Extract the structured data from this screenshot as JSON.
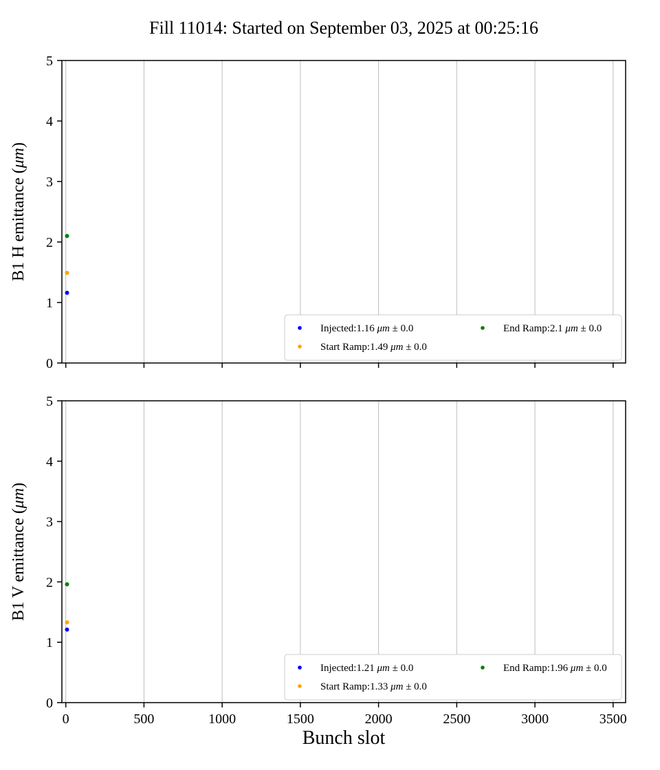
{
  "title": "Fill 11014: Started on September 03, 2025 at 00:25:16",
  "xlabel": "Bunch slot",
  "unit": "μm",
  "plus_minus": "±",
  "style": {
    "grid_color": "#bdbdbd",
    "spine_color": "#000000",
    "legend_border": "#cccccc",
    "background": "#ffffff",
    "injected_color": "#0000ff",
    "start_ramp_color": "#ffa500",
    "end_ramp_color": "#008000"
  },
  "chart_data": [
    {
      "type": "scatter",
      "ylabel": {
        "prefix": "B1 H emittance (",
        "unit": "μm",
        "suffix": ")"
      },
      "xlim": [
        0,
        3500
      ],
      "ylim": [
        0,
        5
      ],
      "xticks": [
        0,
        500,
        1000,
        1500,
        2000,
        2500,
        3000,
        3500
      ],
      "yticks": [
        0,
        1,
        2,
        3,
        4,
        5
      ],
      "grid": "vertical",
      "legend_position": "lower right",
      "legend_columns": 2,
      "series": [
        {
          "name": "Injected",
          "value": "1.16",
          "err": "0.0",
          "color": "#0000ff",
          "points": [
            {
              "x": 8,
              "y": 1.16
            }
          ]
        },
        {
          "name": "Start Ramp",
          "value": "1.49",
          "err": "0.0",
          "color": "#ffa500",
          "points": [
            {
              "x": 8,
              "y": 1.49
            }
          ]
        },
        {
          "name": "End Ramp",
          "value": "2.1",
          "err": "0.0",
          "color": "#008000",
          "points": [
            {
              "x": 8,
              "y": 2.1
            }
          ]
        }
      ]
    },
    {
      "type": "scatter",
      "ylabel": {
        "prefix": "B1 V emittance (",
        "unit": "μm",
        "suffix": ")"
      },
      "xlim": [
        0,
        3500
      ],
      "ylim": [
        0,
        5
      ],
      "xticks": [
        0,
        500,
        1000,
        1500,
        2000,
        2500,
        3000,
        3500
      ],
      "yticks": [
        0,
        1,
        2,
        3,
        4,
        5
      ],
      "grid": "vertical",
      "legend_position": "lower right",
      "legend_columns": 2,
      "series": [
        {
          "name": "Injected",
          "value": "1.21",
          "err": "0.0",
          "color": "#0000ff",
          "points": [
            {
              "x": 8,
              "y": 1.21
            }
          ]
        },
        {
          "name": "Start Ramp",
          "value": "1.33",
          "err": "0.0",
          "color": "#ffa500",
          "points": [
            {
              "x": 8,
              "y": 1.33
            }
          ]
        },
        {
          "name": "End Ramp",
          "value": "1.96",
          "err": "0.0",
          "color": "#008000",
          "points": [
            {
              "x": 8,
              "y": 1.96
            }
          ]
        }
      ]
    }
  ]
}
